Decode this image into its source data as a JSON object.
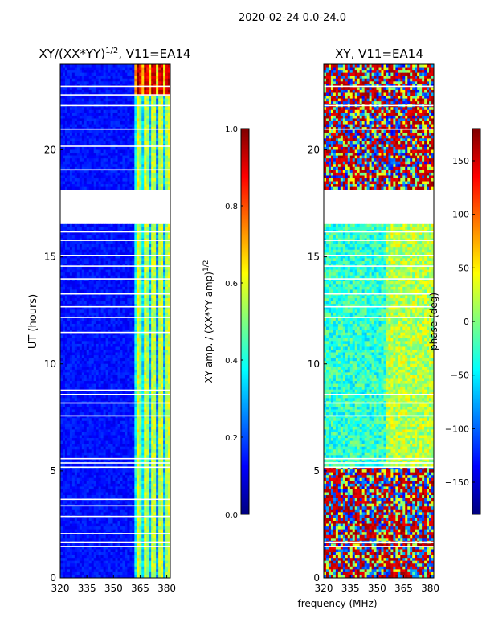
{
  "figure_title": "2020-02-24 0.0-24.0",
  "shared_xlabel": "frequency (MHz)",
  "colors": {
    "jet": [
      "#00007f",
      "#0000ff",
      "#007fff",
      "#00ffff",
      "#7fff7f",
      "#ffff00",
      "#ff7f00",
      "#ff0000",
      "#7f0000"
    ],
    "background": "#ffffff",
    "gap": "#ffffff"
  },
  "chart_data": [
    {
      "type": "heatmap",
      "title_main": "XY/(XX*YY)",
      "title_sup": "1/2",
      "title_rest": ", V11=EA14",
      "ylabel": "UT (hours)",
      "xlabel": "",
      "x_range": [
        320,
        382
      ],
      "y_range": [
        0,
        24
      ],
      "x_ticks": [
        320,
        335,
        350,
        365,
        380
      ],
      "y_ticks": [
        0,
        5,
        10,
        15,
        20
      ],
      "data_gap_hours": [
        16.5,
        18.1
      ],
      "flagged_rows_hours": [
        1.5,
        1.7,
        2.1,
        2.9,
        3.4,
        3.7,
        5.2,
        5.4,
        5.6,
        7.6,
        8.2,
        8.6,
        8.8,
        11.5,
        12.2,
        12.7,
        13.3,
        14.0,
        14.6,
        15.1,
        15.8,
        16.2,
        19.1,
        20.2,
        21.0,
        22.1,
        22.6,
        23.0
      ],
      "high_signal_band_MHz": [
        362,
        382
      ],
      "colorbar": {
        "label_main": "XY amp. / (XX*YY amp)",
        "label_sup": "1/2",
        "range": [
          0.0,
          1.0
        ],
        "ticks": [
          "0.0",
          "0.2",
          "0.4",
          "0.6",
          "0.8",
          "1.0"
        ]
      }
    },
    {
      "type": "heatmap",
      "title": "XY, V11=EA14",
      "ylabel": "",
      "xlabel": "frequency (MHz)",
      "x_range": [
        320,
        382
      ],
      "y_range": [
        0,
        24
      ],
      "x_ticks": [
        320,
        335,
        350,
        365,
        380
      ],
      "y_ticks": [
        0,
        5,
        10,
        15,
        20
      ],
      "data_gap_hours": [
        16.5,
        18.1
      ],
      "flagged_rows_hours": [
        1.5,
        1.7,
        5.2,
        5.4,
        5.6,
        7.6,
        8.2,
        8.6,
        12.2,
        12.7,
        13.3,
        14.0,
        14.6,
        15.1,
        15.8,
        16.2,
        21.0,
        22.1,
        23.0
      ],
      "colorbar": {
        "label": "phase (deg)",
        "range": [
          -180,
          180
        ],
        "ticks": [
          "150",
          "100",
          "50",
          "0",
          "−50",
          "−100",
          "−150"
        ],
        "tick_values": [
          150,
          100,
          50,
          0,
          -50,
          -100,
          -150
        ]
      }
    }
  ]
}
